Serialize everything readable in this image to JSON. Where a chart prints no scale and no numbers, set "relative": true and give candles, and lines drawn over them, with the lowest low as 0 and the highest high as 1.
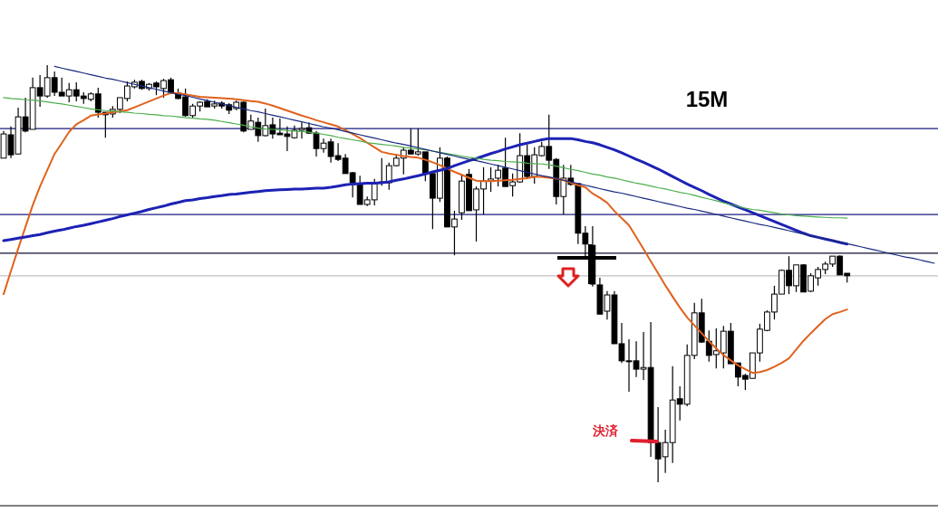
{
  "chart_data": {
    "type": "candlestick",
    "title": "15M",
    "relative": true,
    "categories": [
      null,
      null,
      null,
      null,
      null,
      null,
      null,
      null,
      null,
      null,
      null,
      null,
      null,
      null,
      null,
      null,
      null,
      null,
      null,
      null,
      null,
      null,
      null,
      null,
      null,
      null,
      null,
      null,
      null,
      null,
      null,
      null,
      null,
      null,
      null,
      null,
      null,
      null,
      null,
      null,
      null,
      null,
      null,
      null,
      null,
      null,
      null,
      null,
      null,
      null,
      null,
      null,
      null,
      null,
      null,
      null,
      null,
      null,
      null,
      null,
      null,
      null,
      null,
      null,
      null,
      null,
      null,
      null,
      null,
      null,
      null,
      null,
      null,
      null,
      null,
      null,
      null,
      null,
      null,
      null,
      null,
      null,
      null,
      null,
      null,
      null,
      null,
      null,
      null,
      null,
      null,
      null,
      null,
      null,
      null,
      null,
      null,
      null,
      null,
      null,
      null,
      null,
      null,
      null,
      null,
      null,
      null,
      null,
      null,
      null,
      null,
      null,
      null,
      null,
      null,
      null,
      null,
      null,
      null,
      null,
      null,
      null,
      null,
      null,
      null,
      null,
      null,
      null,
      null
    ],
    "ohlc": [
      [
        0.777,
        0.842,
        0.777,
        0.835
      ],
      [
        0.833,
        0.853,
        0.777,
        0.785
      ],
      [
        0.787,
        0.898,
        0.787,
        0.876
      ],
      [
        0.876,
        0.922,
        0.839,
        0.842
      ],
      [
        0.846,
        0.97,
        0.846,
        0.946
      ],
      [
        0.946,
        0.976,
        0.9,
        0.926
      ],
      [
        0.926,
        1,
        0.922,
        0.97
      ],
      [
        0.97,
        0.985,
        0.926,
        0.935
      ],
      [
        0.935,
        0.97,
        0.926,
        0.926
      ],
      [
        0.926,
        0.957,
        0.911,
        0.941
      ],
      [
        0.941,
        0.959,
        0.913,
        0.926
      ],
      [
        0.926,
        0.935,
        0.907,
        0.92
      ],
      [
        0.918,
        0.935,
        0.913,
        0.931
      ],
      [
        0.931,
        0.946,
        0.874,
        0.887
      ],
      [
        0.887,
        0.887,
        0.826,
        0.881
      ],
      [
        0.883,
        0.902,
        0.874,
        0.894
      ],
      [
        0.894,
        0.922,
        0.885,
        0.922
      ],
      [
        0.92,
        0.961,
        0.913,
        0.95
      ],
      [
        0.948,
        0.965,
        0.944,
        0.959
      ],
      [
        0.961,
        0.965,
        0.941,
        0.944
      ],
      [
        0.944,
        0.957,
        0.939,
        0.954
      ],
      [
        0.957,
        0.961,
        0.928,
        0.948
      ],
      [
        0.944,
        0.967,
        0.922,
        0.963
      ],
      [
        0.965,
        0.97,
        0.931,
        0.935
      ],
      [
        0.933,
        0.944,
        0.918,
        0.92
      ],
      [
        0.924,
        0.944,
        0.876,
        0.879
      ],
      [
        0.879,
        0.907,
        0.874,
        0.902
      ],
      [
        0.902,
        0.913,
        0.889,
        0.911
      ],
      [
        0.913,
        0.918,
        0.9,
        0.9
      ],
      [
        0.902,
        0.915,
        0.896,
        0.907
      ],
      [
        0.909,
        0.913,
        0.896,
        0.902
      ],
      [
        0.905,
        0.909,
        0.883,
        0.892
      ],
      [
        0.896,
        0.915,
        0.892,
        0.911
      ],
      [
        0.911,
        0.913,
        0.839,
        0.842
      ],
      [
        0.846,
        0.881,
        0.846,
        0.866
      ],
      [
        0.863,
        0.874,
        0.816,
        0.831
      ],
      [
        0.831,
        0.896,
        0.829,
        0.855
      ],
      [
        0.857,
        0.874,
        0.824,
        0.835
      ],
      [
        0.837,
        0.872,
        0.833,
        0.833
      ],
      [
        0.835,
        0.853,
        0.794,
        0.829
      ],
      [
        0.826,
        0.855,
        0.824,
        0.844
      ],
      [
        0.844,
        0.863,
        0.824,
        0.848
      ],
      [
        0.85,
        0.863,
        0.835,
        0.837
      ],
      [
        0.837,
        0.842,
        0.781,
        0.8
      ],
      [
        0.8,
        0.824,
        0.79,
        0.813
      ],
      [
        0.816,
        0.824,
        0.766,
        0.781
      ],
      [
        0.783,
        0.813,
        0.77,
        0.774
      ],
      [
        0.777,
        0.787,
        0.74,
        0.74
      ],
      [
        0.742,
        0.744,
        0.683,
        0.718
      ],
      [
        0.716,
        0.735,
        0.666,
        0.666
      ],
      [
        0.666,
        0.685,
        0.662,
        0.677
      ],
      [
        0.677,
        0.727,
        0.664,
        0.716
      ],
      [
        0.718,
        0.777,
        0.711,
        0.72
      ],
      [
        0.718,
        0.766,
        0.701,
        0.759
      ],
      [
        0.759,
        0.787,
        0.757,
        0.777
      ],
      [
        0.777,
        0.803,
        0.738,
        0.796
      ],
      [
        0.796,
        0.848,
        0.787,
        0.787
      ],
      [
        0.787,
        0.848,
        0.783,
        0.792
      ],
      [
        0.792,
        0.792,
        0.722,
        0.74
      ],
      [
        0.74,
        0.74,
        0.607,
        0.681
      ],
      [
        0.681,
        0.803,
        0.672,
        0.777
      ],
      [
        0.777,
        0.781,
        0.612,
        0.612
      ],
      [
        0.612,
        0.651,
        0.544,
        0.631
      ],
      [
        0.646,
        0.738,
        0.629,
        0.722
      ],
      [
        0.738,
        0.751,
        0.651,
        0.651
      ],
      [
        0.653,
        0.709,
        0.577,
        0.703
      ],
      [
        0.703,
        0.755,
        0.642,
        0.722
      ],
      [
        0.722,
        0.755,
        0.696,
        0.727
      ],
      [
        0.729,
        0.761,
        0.709,
        0.748
      ],
      [
        0.753,
        0.826,
        0.709,
        0.709
      ],
      [
        0.711,
        0.74,
        0.685,
        0.72
      ],
      [
        0.72,
        0.837,
        0.718,
        0.783
      ],
      [
        0.783,
        0.809,
        0.729,
        0.733
      ],
      [
        0.733,
        0.803,
        0.716,
        0.785
      ],
      [
        0.783,
        0.816,
        0.781,
        0.805
      ],
      [
        0.805,
        0.881,
        0.751,
        0.772
      ],
      [
        0.774,
        0.777,
        0.666,
        0.685
      ],
      [
        0.685,
        0.761,
        0.642,
        0.729
      ],
      [
        0.729,
        0.761,
        0.711,
        0.714
      ],
      [
        0.716,
        0.716,
        0.571,
        0.597
      ],
      [
        0.597,
        0.614,
        0.542,
        0.571
      ],
      [
        0.568,
        0.614,
        0.469,
        0.475
      ],
      [
        0.473,
        0.49,
        0.403,
        0.403
      ],
      [
        0.41,
        0.458,
        0.39,
        0.449
      ],
      [
        0.449,
        0.458,
        0.332,
        0.332
      ],
      [
        0.332,
        0.382,
        0.286,
        0.291
      ],
      [
        0.291,
        0.343,
        0.217,
        0.289
      ],
      [
        0.291,
        0.338,
        0.252,
        0.271
      ],
      [
        0.271,
        0.36,
        0.245,
        0.275
      ],
      [
        0.275,
        0.384,
        0.061,
        0.095
      ],
      [
        0.095,
        0.18,
        0,
        0.056
      ],
      [
        0.061,
        0.126,
        0.022,
        0.095
      ],
      [
        0.095,
        0.278,
        0.046,
        0.197
      ],
      [
        0.2,
        0.23,
        0.148,
        0.187
      ],
      [
        0.187,
        0.33,
        0.182,
        0.304
      ],
      [
        0.304,
        0.43,
        0.295,
        0.406
      ],
      [
        0.406,
        0.44,
        0.334,
        0.336
      ],
      [
        0.338,
        0.364,
        0.289,
        0.304
      ],
      [
        0.306,
        0.369,
        0.273,
        0.315
      ],
      [
        0.31,
        0.375,
        0.273,
        0.362
      ],
      [
        0.362,
        0.382,
        0.284,
        0.284
      ],
      [
        0.286,
        0.286,
        0.23,
        0.252
      ],
      [
        0.256,
        0.26,
        0.221,
        0.247
      ],
      [
        0.249,
        0.31,
        0.249,
        0.31
      ],
      [
        0.31,
        0.38,
        0.289,
        0.367
      ],
      [
        0.364,
        0.412,
        0.362,
        0.408
      ],
      [
        0.408,
        0.471,
        0.39,
        0.451
      ],
      [
        0.451,
        0.51,
        0.451,
        0.508
      ],
      [
        0.508,
        0.542,
        0.451,
        0.471
      ],
      [
        0.471,
        0.521,
        0.456,
        0.521
      ],
      [
        0.521,
        0.523,
        0.456,
        0.456
      ],
      [
        0.458,
        0.501,
        0.456,
        0.495
      ],
      [
        0.49,
        0.516,
        0.471,
        0.51
      ],
      [
        0.51,
        0.529,
        0.499,
        0.523
      ],
      [
        0.523,
        0.542,
        0.516,
        0.542
      ],
      [
        0.542,
        0.544,
        0.497,
        0.497
      ],
      [
        0.501,
        0.501,
        0.479,
        0.495
      ],
      null,
      null,
      null,
      null,
      null,
      null,
      null,
      null,
      null,
      null,
      null,
      null
    ],
    "series": [
      {
        "type": "line",
        "color": "#e0621c",
        "values": [
          0.451,
          0.506,
          0.56,
          0.612,
          0.664,
          0.709,
          0.748,
          0.787,
          0.813,
          0.84,
          0.858,
          0.868,
          0.879,
          0.882,
          0.884,
          0.887,
          0.889,
          0.892,
          0.899,
          0.906,
          0.913,
          0.92,
          0.927,
          0.933,
          0.933,
          0.93,
          0.927,
          0.924,
          0.923,
          0.922,
          0.921,
          0.92,
          0.918,
          0.916,
          0.914,
          0.912,
          0.908,
          0.903,
          0.897,
          0.891,
          0.885,
          0.879,
          0.874,
          0.868,
          0.863,
          0.858,
          0.853,
          0.844,
          0.835,
          0.825,
          0.814,
          0.803,
          0.792,
          0.788,
          0.785,
          0.782,
          0.78,
          0.778,
          0.773,
          0.767,
          0.76,
          0.752,
          0.744,
          0.737,
          0.73,
          0.723,
          0.722,
          0.722,
          0.723,
          0.724,
          0.725,
          0.727,
          0.729,
          0.732,
          0.732,
          0.73,
          0.728,
          0.724,
          0.718,
          0.712,
          0.707,
          0.692,
          0.682,
          0.67,
          0.65,
          0.633,
          0.616,
          0.588,
          0.559,
          0.53,
          0.501,
          0.472,
          0.445,
          0.419,
          0.395,
          0.376,
          0.357,
          0.338,
          0.321,
          0.305,
          0.292,
          0.28,
          0.271,
          0.262,
          0.264,
          0.269,
          0.277,
          0.286,
          0.297,
          0.318,
          0.339,
          0.357,
          0.374,
          0.391,
          0.403,
          0.408,
          0.414,
          null,
          null,
          null,
          null,
          null,
          null,
          null,
          null,
          null,
          null,
          null,
          null
        ]
      },
      {
        "type": "line",
        "color": "#1c22b4",
        "values": [
          0.579,
          0.582,
          0.585,
          0.588,
          0.591,
          0.594,
          0.598,
          0.602,
          0.605,
          0.609,
          0.613,
          0.616,
          0.62,
          0.624,
          0.628,
          0.632,
          0.637,
          0.641,
          0.645,
          0.649,
          0.654,
          0.658,
          0.662,
          0.667,
          0.671,
          0.675,
          0.677,
          0.68,
          0.682,
          0.685,
          0.687,
          0.69,
          0.691,
          0.693,
          0.695,
          0.697,
          0.699,
          0.7,
          0.701,
          0.702,
          0.703,
          0.703,
          0.704,
          0.705,
          0.705,
          0.707,
          0.71,
          0.713,
          0.715,
          0.716,
          0.717,
          0.717,
          0.718,
          0.72,
          0.724,
          0.727,
          0.731,
          0.735,
          0.739,
          0.744,
          0.748,
          0.752,
          0.759,
          0.765,
          0.771,
          0.776,
          0.782,
          0.788,
          0.793,
          0.799,
          0.804,
          0.809,
          0.813,
          0.817,
          0.821,
          0.824,
          0.824,
          0.824,
          0.824,
          0.821,
          0.817,
          0.814,
          0.809,
          0.803,
          0.797,
          0.79,
          0.782,
          0.774,
          0.767,
          0.759,
          0.751,
          0.742,
          0.733,
          0.724,
          0.715,
          0.707,
          0.699,
          0.69,
          0.682,
          0.674,
          0.667,
          0.66,
          0.653,
          0.646,
          0.639,
          0.632,
          0.625,
          0.618,
          0.611,
          0.604,
          0.597,
          0.591,
          0.587,
          0.583,
          0.579,
          0.575,
          0.571,
          null,
          null,
          null,
          null,
          null,
          null,
          null,
          null,
          null,
          null,
          null,
          null
        ]
      },
      {
        "type": "line",
        "color": "#4cae4c",
        "values": [
          0.922,
          0.92,
          0.919,
          0.917,
          0.916,
          0.914,
          0.912,
          0.909,
          0.907,
          0.904,
          0.901,
          0.898,
          0.895,
          0.893,
          0.891,
          0.89,
          0.888,
          0.887,
          0.885,
          0.884,
          0.882,
          0.881,
          0.879,
          0.878,
          0.876,
          0.874,
          0.873,
          0.871,
          0.87,
          0.868,
          0.865,
          0.862,
          0.859,
          0.856,
          0.852,
          0.849,
          0.847,
          0.846,
          0.845,
          0.843,
          0.842,
          0.841,
          0.839,
          0.837,
          0.834,
          0.831,
          0.827,
          0.824,
          0.821,
          0.818,
          0.814,
          0.812,
          0.81,
          0.808,
          0.806,
          0.803,
          0.801,
          0.799,
          0.797,
          0.794,
          0.791,
          0.788,
          0.785,
          0.782,
          0.779,
          0.777,
          0.774,
          0.772,
          0.771,
          0.769,
          0.768,
          0.767,
          0.765,
          0.764,
          0.763,
          0.761,
          0.758,
          0.754,
          0.75,
          0.747,
          0.743,
          0.739,
          0.736,
          0.732,
          0.729,
          0.725,
          0.721,
          0.717,
          0.714,
          0.71,
          0.706,
          0.703,
          0.699,
          0.695,
          0.692,
          0.688,
          0.683,
          0.679,
          0.675,
          0.67,
          0.666,
          0.661,
          0.657,
          0.654,
          0.652,
          0.649,
          0.646,
          0.643,
          0.641,
          0.639,
          0.638,
          0.637,
          0.636,
          0.635,
          0.634,
          0.634,
          0.633,
          null,
          null,
          null,
          null,
          null,
          null,
          null,
          null,
          null,
          null,
          null,
          null
        ]
      },
      {
        "type": "line",
        "color": "#1a2a80",
        "values": [
          null,
          null,
          null,
          null,
          null,
          null,
          null,
          0.997,
          0.993,
          0.989,
          0.985,
          0.981,
          0.977,
          0.973,
          0.969,
          0.966,
          0.962,
          0.958,
          0.954,
          0.95,
          0.946,
          0.942,
          0.938,
          0.934,
          0.93,
          0.927,
          0.923,
          0.919,
          0.915,
          0.911,
          0.907,
          0.903,
          0.899,
          0.895,
          0.891,
          0.888,
          0.884,
          0.88,
          0.876,
          0.872,
          0.868,
          0.864,
          0.86,
          0.856,
          0.852,
          0.849,
          0.845,
          0.841,
          0.837,
          0.833,
          0.829,
          0.825,
          0.821,
          0.817,
          0.813,
          0.81,
          0.806,
          0.802,
          0.798,
          0.794,
          0.79,
          0.786,
          0.782,
          0.778,
          0.774,
          0.771,
          0.767,
          0.763,
          0.759,
          0.755,
          0.751,
          0.747,
          0.743,
          0.739,
          0.735,
          0.732,
          0.728,
          0.724,
          0.72,
          0.716,
          0.712,
          0.708,
          0.704,
          0.7,
          0.696,
          0.693,
          0.689,
          0.685,
          0.681,
          0.677,
          0.673,
          0.669,
          0.665,
          0.661,
          0.657,
          0.654,
          0.65,
          0.646,
          0.642,
          0.638,
          0.634,
          0.63,
          0.626,
          0.622,
          0.618,
          0.615,
          0.611,
          0.607,
          0.603,
          0.599,
          0.595,
          0.591,
          0.587,
          0.583,
          0.579,
          0.576,
          0.572,
          0.568,
          0.564,
          0.56,
          0.556,
          0.552,
          0.548,
          0.544,
          0.54,
          0.537,
          0.533,
          0.529,
          0.525
        ]
      }
    ],
    "ref_lines": [
      {
        "axis": "y",
        "value": 0.848,
        "color": "#1a1a80"
      },
      {
        "axis": "y",
        "value": 0.642,
        "color": "#1a1a80"
      },
      {
        "axis": "y",
        "value": 0.549,
        "color": "#101030"
      },
      {
        "axis": "y",
        "value": 0.495,
        "color": "#c0c0c0"
      }
    ],
    "annotations": [
      "決済"
    ]
  }
}
